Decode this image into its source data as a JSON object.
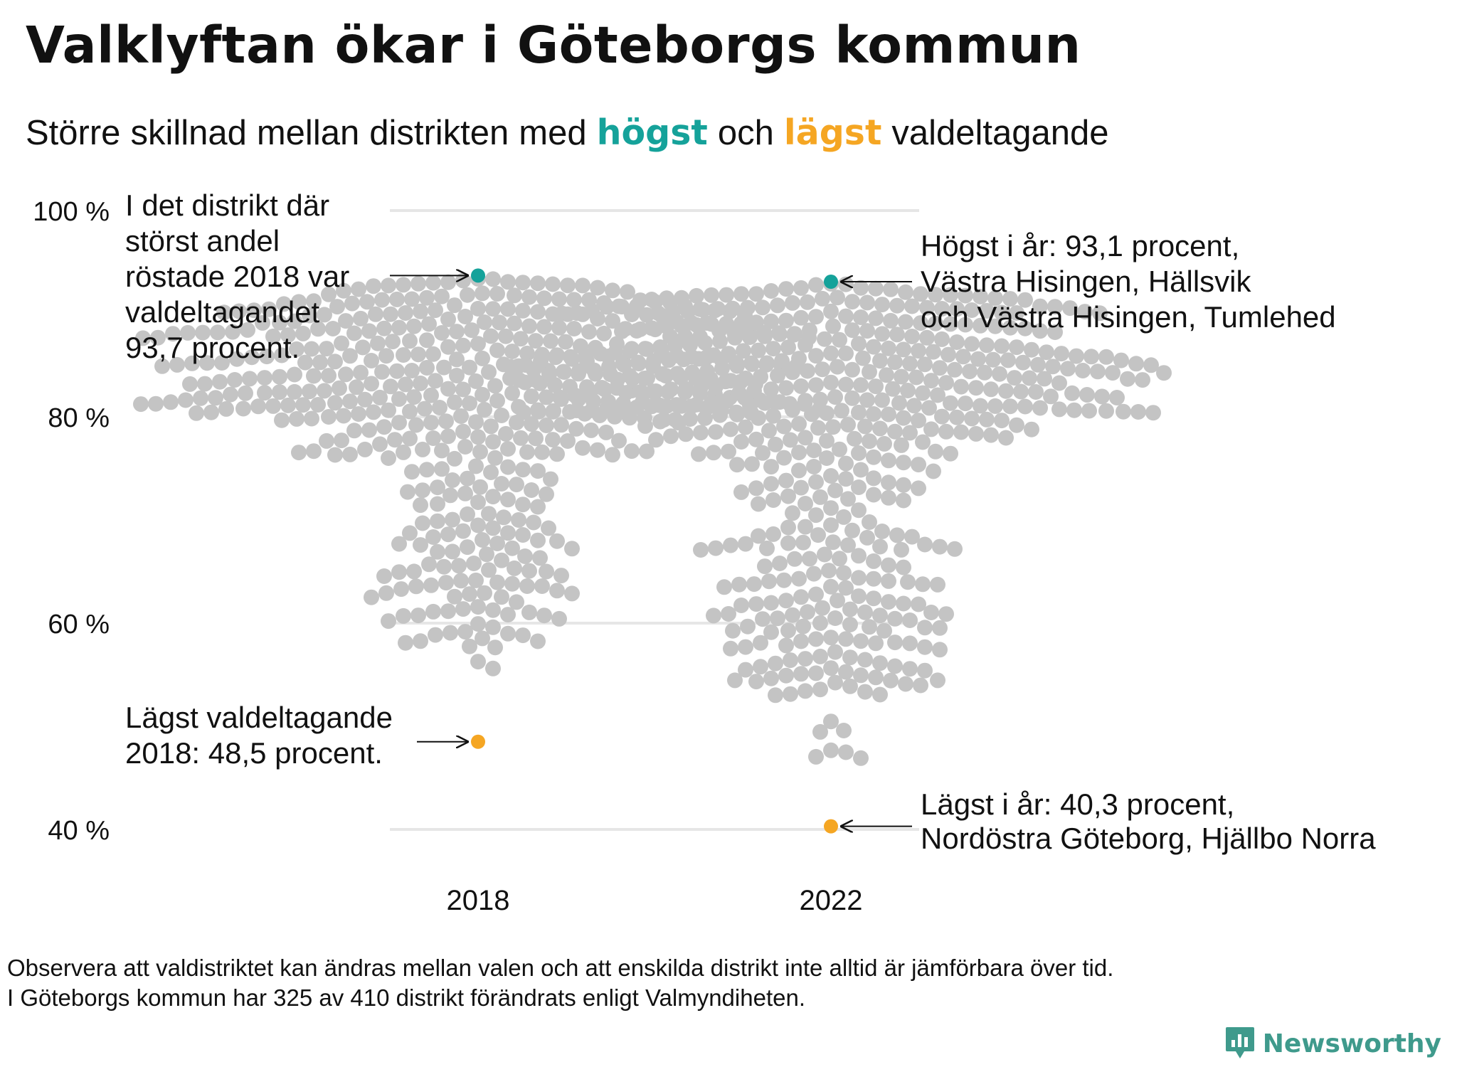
{
  "title": "Valklyftan ökar i Göteborgs kommun",
  "subtitle": {
    "part1": "Större",
    "part2": "skillnad",
    "part3": "mellan",
    "part4": "distrikten",
    "part5": "med",
    "highest_word": "högst",
    "and_word": "och",
    "lowest_word": "lägst",
    "tail": "valdeltagande"
  },
  "colors": {
    "highest": "#15a29a",
    "lowest": "#f5a623",
    "points": "#c4c4c4",
    "grid": "#e6e6e6",
    "brand": "#3f9a8c"
  },
  "chart_data": {
    "type": "scatter",
    "subtype": "beeswarm",
    "xlabel": "",
    "ylabel": "",
    "categories": [
      "2018",
      "2022"
    ],
    "ylim": [
      40,
      100
    ],
    "yticks": [
      100,
      80,
      60,
      40
    ],
    "ytick_labels": [
      "100 %",
      "80 %",
      "60 %",
      "40 %"
    ],
    "grid": true,
    "series": [
      {
        "category": "2018",
        "max": 93.7,
        "min": 48.5,
        "distribution_bands": [
          {
            "range": [
              55.5,
              58
            ],
            "count": 4
          },
          {
            "range": [
              58,
              64
            ],
            "count": 40
          },
          {
            "range": [
              64,
              69
            ],
            "count": 35
          },
          {
            "range": [
              69,
              74
            ],
            "count": 30
          },
          {
            "range": [
              74,
              76
            ],
            "count": 10
          },
          {
            "range": [
              76,
              80
            ],
            "count": 60
          },
          {
            "range": [
              80,
              86
            ],
            "count": 170
          },
          {
            "range": [
              86,
              92
            ],
            "count": 140
          },
          {
            "range": [
              92,
              93.5
            ],
            "count": 20
          }
        ]
      },
      {
        "category": "2022",
        "max": 93.1,
        "min": 40.3,
        "distribution_bands": [
          {
            "range": [
              46.5,
              48
            ],
            "count": 4
          },
          {
            "range": [
              49,
              51
            ],
            "count": 3
          },
          {
            "range": [
              53,
              58
            ],
            "count": 40
          },
          {
            "range": [
              58,
              64
            ],
            "count": 55
          },
          {
            "range": [
              64,
              70
            ],
            "count": 45
          },
          {
            "range": [
              70,
              76
            ],
            "count": 40
          },
          {
            "range": [
              76,
              80
            ],
            "count": 60
          },
          {
            "range": [
              80,
              86
            ],
            "count": 170
          },
          {
            "range": [
              86,
              92
            ],
            "count": 130
          },
          {
            "range": [
              92,
              93
            ],
            "count": 10
          }
        ]
      }
    ],
    "annotations": {
      "max_2018": {
        "lines": [
          "I det distrikt där",
          "störst andel",
          "röstade 2018 var",
          "valdeltagandet",
          "93,7 procent."
        ]
      },
      "min_2018": {
        "lines": [
          "Lägst valdeltagande",
          "2018: 48,5 procent."
        ]
      },
      "max_2022": {
        "lines": [
          "Högst i år: 93,1 procent,",
          "Västra Hisingen, Hällsvik",
          "och Västra Hisingen, Tumlehed"
        ]
      },
      "min_2022": {
        "lines": [
          "Lägst i år: 40,3 procent,",
          "Nordöstra Göteborg, Hjällbo Norra"
        ]
      }
    }
  },
  "footnote": {
    "line1": "Observera att valdistriktet kan ändras mellan valen och att enskilda distrikt inte alltid är jämförbara över tid.",
    "line2": "I Göteborgs kommun har 325 av 410 distrikt förändrats enligt Valmyndiheten."
  },
  "brand": {
    "name": "Newsworthy",
    "icon": "newsworthy-logo-icon"
  }
}
